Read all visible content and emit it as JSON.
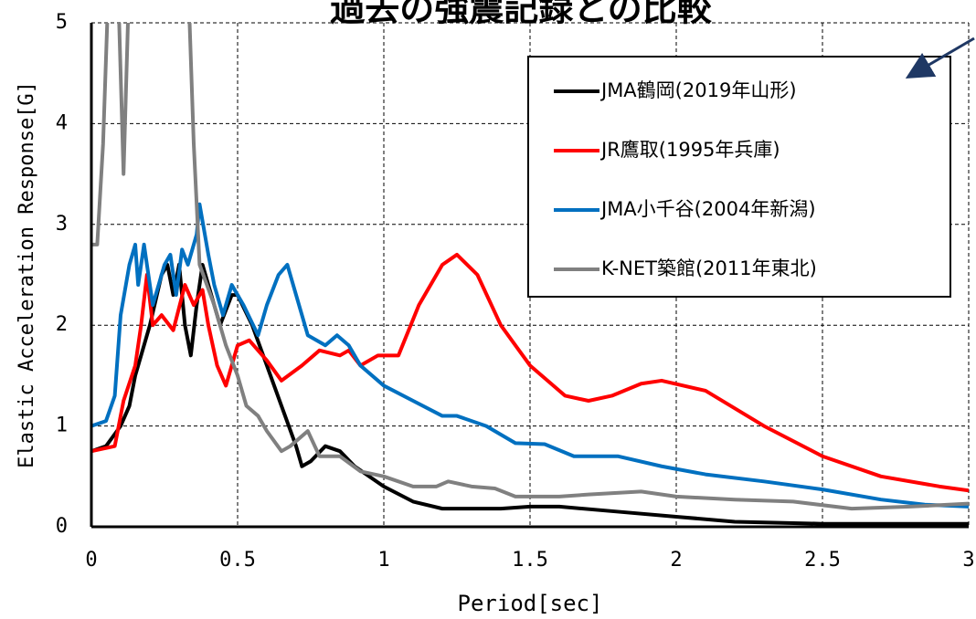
{
  "chart_data": {
    "type": "line",
    "title": "過去の強震記録との比較",
    "xlabel": "Period[sec]",
    "ylabel": "Elastic Acceleration Response[G]",
    "xlim": [
      0,
      3
    ],
    "ylim": [
      0,
      5
    ],
    "xticks": [
      0,
      0.5,
      1,
      1.5,
      2,
      2.5,
      3
    ],
    "yticks": [
      0,
      1,
      2,
      3,
      4,
      5
    ],
    "grid": true,
    "legend": "upper right",
    "series": [
      {
        "name": "JMA鶴岡(2019年山形)",
        "color": "#000000",
        "x": [
          0,
          0.05,
          0.1,
          0.13,
          0.15,
          0.2,
          0.24,
          0.26,
          0.28,
          0.3,
          0.32,
          0.34,
          0.36,
          0.38,
          0.42,
          0.44,
          0.48,
          0.5,
          0.55,
          0.6,
          0.65,
          0.7,
          0.72,
          0.75,
          0.8,
          0.85,
          0.9,
          1.0,
          1.1,
          1.2,
          1.4,
          1.5,
          1.6,
          1.8,
          2.0,
          2.2,
          2.5,
          3.0
        ],
        "values": [
          0.75,
          0.8,
          1.0,
          1.2,
          1.5,
          2.0,
          2.5,
          2.6,
          2.3,
          2.6,
          2.0,
          1.7,
          2.2,
          2.6,
          2.2,
          2.0,
          2.3,
          2.3,
          2.0,
          1.6,
          1.2,
          0.8,
          0.6,
          0.65,
          0.8,
          0.75,
          0.6,
          0.4,
          0.25,
          0.18,
          0.18,
          0.2,
          0.2,
          0.15,
          0.1,
          0.05,
          0.03,
          0.03
        ]
      },
      {
        "name": "JR鷹取(1995年兵庫)",
        "color": "#ff0000",
        "x": [
          0,
          0.08,
          0.11,
          0.15,
          0.17,
          0.19,
          0.21,
          0.24,
          0.28,
          0.32,
          0.35,
          0.38,
          0.4,
          0.43,
          0.46,
          0.5,
          0.54,
          0.6,
          0.65,
          0.72,
          0.78,
          0.85,
          0.88,
          0.92,
          0.98,
          1.05,
          1.12,
          1.2,
          1.25,
          1.32,
          1.4,
          1.5,
          1.62,
          1.7,
          1.78,
          1.88,
          1.95,
          2.1,
          2.3,
          2.5,
          2.7,
          2.9,
          3.0
        ],
        "values": [
          0.75,
          0.8,
          1.25,
          1.6,
          2.0,
          2.5,
          2.0,
          2.1,
          1.95,
          2.4,
          2.2,
          2.35,
          2.0,
          1.6,
          1.4,
          1.8,
          1.85,
          1.65,
          1.45,
          1.6,
          1.75,
          1.7,
          1.75,
          1.6,
          1.7,
          1.7,
          2.2,
          2.6,
          2.7,
          2.5,
          2.0,
          1.6,
          1.3,
          1.25,
          1.3,
          1.42,
          1.45,
          1.35,
          1.0,
          0.7,
          0.5,
          0.4,
          0.36
        ]
      },
      {
        "name": "JMA小千谷(2004年新潟)",
        "color": "#0070c0",
        "x": [
          0,
          0.05,
          0.08,
          0.1,
          0.13,
          0.15,
          0.16,
          0.18,
          0.21,
          0.25,
          0.27,
          0.29,
          0.31,
          0.33,
          0.36,
          0.37,
          0.4,
          0.42,
          0.45,
          0.48,
          0.52,
          0.57,
          0.6,
          0.64,
          0.67,
          0.7,
          0.74,
          0.8,
          0.84,
          0.88,
          0.92,
          1.0,
          1.1,
          1.2,
          1.25,
          1.35,
          1.45,
          1.55,
          1.65,
          1.8,
          1.95,
          2.1,
          2.3,
          2.5,
          2.7,
          2.85,
          3.0
        ],
        "values": [
          1.0,
          1.05,
          1.3,
          2.1,
          2.6,
          2.8,
          2.4,
          2.8,
          2.2,
          2.6,
          2.7,
          2.3,
          2.75,
          2.6,
          2.9,
          3.2,
          2.7,
          2.4,
          2.1,
          2.4,
          2.2,
          1.9,
          2.2,
          2.5,
          2.6,
          2.3,
          1.9,
          1.8,
          1.9,
          1.8,
          1.6,
          1.4,
          1.25,
          1.1,
          1.1,
          1.0,
          0.83,
          0.82,
          0.7,
          0.7,
          0.6,
          0.52,
          0.45,
          0.37,
          0.27,
          0.22,
          0.2
        ]
      },
      {
        "name": "K-NET築館(2011年東北)",
        "color": "#808080",
        "x": [
          0,
          0.02,
          0.04,
          0.06,
          0.09,
          0.11,
          0.13,
          0.33,
          0.35,
          0.37,
          0.42,
          0.46,
          0.5,
          0.53,
          0.57,
          0.6,
          0.65,
          0.68,
          0.74,
          0.78,
          0.85,
          0.92,
          1.0,
          1.1,
          1.18,
          1.22,
          1.3,
          1.38,
          1.45,
          1.6,
          1.7,
          1.88,
          2.0,
          2.2,
          2.4,
          2.6,
          2.8,
          3.0
        ],
        "values": [
          2.8,
          2.8,
          3.8,
          5.5,
          5.5,
          3.5,
          5.5,
          5.5,
          3.8,
          2.6,
          2.2,
          1.8,
          1.5,
          1.2,
          1.1,
          0.95,
          0.75,
          0.8,
          0.95,
          0.7,
          0.7,
          0.55,
          0.5,
          0.4,
          0.4,
          0.45,
          0.4,
          0.38,
          0.3,
          0.3,
          0.32,
          0.35,
          0.3,
          0.27,
          0.25,
          0.18,
          0.2,
          0.23
        ]
      }
    ]
  }
}
